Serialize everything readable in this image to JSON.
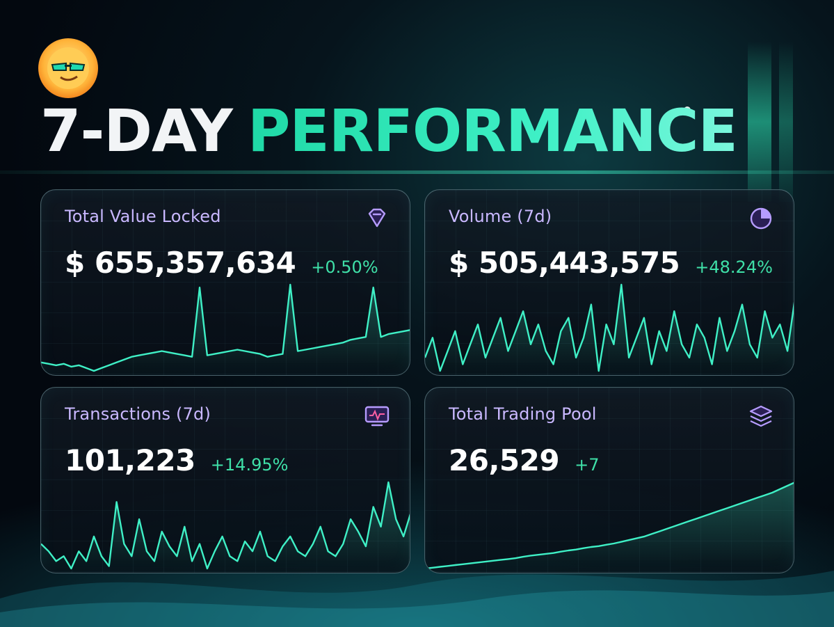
{
  "headline": {
    "part1": "7-DAY",
    "part2": "PERFORMANCE"
  },
  "colors": {
    "accent": "#2ee6b4",
    "label": "#c9b8ff",
    "positive": "#3fe0a8",
    "line": "#3ff0c6"
  },
  "cards": [
    {
      "title": "Total Value Locked",
      "value": "$ 655,357,634",
      "change": "+0.50%",
      "icon": "diamond-icon"
    },
    {
      "title": "Volume (7d)",
      "value": "$ 505,443,575",
      "change": "+48.24%",
      "icon": "pie-chart-icon"
    },
    {
      "title": "Transactions (7d)",
      "value": "101,223",
      "change": "+14.95%",
      "icon": "monitor-pulse-icon"
    },
    {
      "title": "Total Trading Pool",
      "value": "26,529",
      "change": "+7",
      "icon": "layers-icon"
    }
  ],
  "chart_data": [
    {
      "type": "line",
      "values": [
        42,
        41,
        40,
        41,
        39,
        40,
        38,
        36,
        38,
        40,
        42,
        44,
        46,
        47,
        48,
        49,
        50,
        49,
        48,
        47,
        46,
        95,
        47,
        48,
        49,
        50,
        51,
        50,
        49,
        48,
        46,
        47,
        48,
        97,
        50,
        51,
        52,
        53,
        54,
        55,
        56,
        58,
        59,
        60,
        95,
        60,
        62,
        63,
        64,
        65
      ]
    },
    {
      "type": "line",
      "values": [
        40,
        55,
        30,
        45,
        60,
        35,
        50,
        65,
        40,
        55,
        70,
        45,
        60,
        75,
        50,
        65,
        45,
        35,
        60,
        70,
        40,
        55,
        80,
        30,
        65,
        50,
        95,
        40,
        55,
        70,
        35,
        60,
        45,
        75,
        50,
        40,
        65,
        55,
        35,
        70,
        45,
        60,
        80,
        50,
        40,
        75,
        55,
        65,
        45,
        85
      ]
    },
    {
      "type": "line",
      "values": [
        45,
        42,
        38,
        40,
        35,
        42,
        38,
        48,
        40,
        36,
        62,
        45,
        40,
        55,
        42,
        38,
        50,
        44,
        40,
        52,
        38,
        45,
        35,
        42,
        48,
        40,
        38,
        46,
        42,
        50,
        40,
        38,
        44,
        48,
        42,
        40,
        45,
        52,
        42,
        40,
        45,
        55,
        50,
        44,
        60,
        52,
        70,
        55,
        48,
        58
      ]
    },
    {
      "type": "line",
      "values": [
        10,
        10.5,
        11,
        11.5,
        12,
        12.5,
        13,
        13.5,
        14,
        14.5,
        15,
        15.5,
        16,
        16.8,
        17.5,
        18,
        18.5,
        19,
        19.8,
        20.5,
        21,
        21.8,
        22.5,
        23,
        23.8,
        24.5,
        25.5,
        26.5,
        27.5,
        28.5,
        30,
        31.5,
        33,
        34.5,
        36,
        37.5,
        39,
        40.5,
        42,
        43.5,
        45,
        46.5,
        48,
        49.5,
        51,
        52.5,
        54,
        56,
        58,
        60
      ]
    }
  ]
}
